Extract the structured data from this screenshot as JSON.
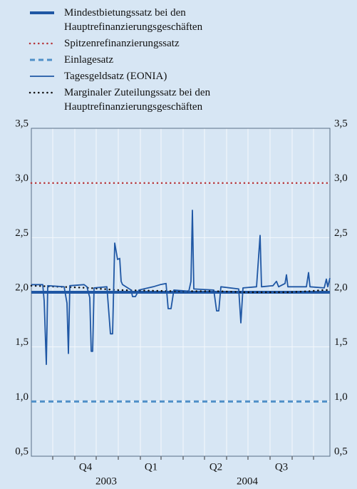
{
  "chart_data": {
    "type": "line",
    "series": [
      {
        "name": "Mindestbietungssatz bei den Hauptrefinanzierungsgeschäften",
        "color": "#1f57a4",
        "style": "solid",
        "width": 4,
        "x": [
          0,
          419
        ],
        "values": [
          2.0,
          2.0
        ]
      },
      {
        "name": "Spitzenrefinanzierungssatz",
        "color": "#b5353a",
        "style": "dotted",
        "width": 2.5,
        "x": [
          0,
          419
        ],
        "values": [
          3.0,
          3.0
        ]
      },
      {
        "name": "Einlagesatz",
        "color": "#4f8fc8",
        "style": "dashed",
        "width": 3,
        "x": [
          0,
          419
        ],
        "values": [
          1.0,
          1.0
        ]
      },
      {
        "name": "Tagesgeldsatz (EONIA)",
        "color": "#1f57a4",
        "style": "solid",
        "width": 1.8,
        "x": [
          0,
          16,
          18,
          21,
          23,
          46,
          50,
          52,
          54,
          74,
          78,
          82,
          84,
          86,
          88,
          106,
          111,
          114,
          117,
          121,
          124,
          126,
          128,
          140,
          142,
          146,
          151,
          171,
          181,
          189,
          192,
          196,
          200,
          221,
          224,
          226,
          228,
          256,
          260,
          263,
          266,
          291,
          294,
          297,
          316,
          321,
          323,
          339,
          344,
          347,
          356,
          358,
          360,
          386,
          389,
          391,
          411,
          414,
          416,
          419
        ],
        "values": [
          2.07,
          2.07,
          1.92,
          1.34,
          2.06,
          2.05,
          1.9,
          1.44,
          2.06,
          2.07,
          2.05,
          1.95,
          1.46,
          1.46,
          2.04,
          2.05,
          1.62,
          1.62,
          2.45,
          2.3,
          2.31,
          2.1,
          2.07,
          2.02,
          1.96,
          1.96,
          2.02,
          2.05,
          2.07,
          2.08,
          1.85,
          1.85,
          2.02,
          2.01,
          2.1,
          2.75,
          2.03,
          2.02,
          1.83,
          1.83,
          2.05,
          2.03,
          1.72,
          2.04,
          2.05,
          2.52,
          2.05,
          2.06,
          2.1,
          2.05,
          2.08,
          2.16,
          2.05,
          2.05,
          2.18,
          2.05,
          2.04,
          2.12,
          2.05,
          2.13
        ]
      },
      {
        "name": "Marginaler Zuteilungssatz bei den Hauptrefinanzierungsgeschäften",
        "color": "#111111",
        "style": "dotted",
        "width": 2.5,
        "x": [
          0,
          40,
          80,
          120,
          200,
          260,
          300,
          360,
          390,
          410,
          419
        ],
        "values": [
          2.06,
          2.05,
          2.04,
          2.02,
          2.01,
          2.01,
          2.0,
          2.0,
          2.01,
          2.02,
          2.02
        ]
      }
    ],
    "xlim": [
      0,
      419
    ],
    "xticks": [
      {
        "value": 76,
        "label": "Q4"
      },
      {
        "value": 168,
        "label": "Q1"
      },
      {
        "value": 259,
        "label": "Q2"
      },
      {
        "value": 351,
        "label": "Q3"
      }
    ],
    "x_group_labels": [
      {
        "value": 61,
        "label": "2003"
      },
      {
        "value": 259,
        "label": "2004"
      }
    ],
    "xgrid": [
      30,
      61,
      91,
      122,
      153,
      182,
      213,
      243,
      274,
      304,
      335,
      366,
      396
    ],
    "ylim": [
      0.5,
      3.5
    ],
    "yticks": [
      {
        "value": 0.5,
        "label": "0,5"
      },
      {
        "value": 1.0,
        "label": "1,0"
      },
      {
        "value": 1.5,
        "label": "1,5"
      },
      {
        "value": 2.0,
        "label": "2,0"
      },
      {
        "value": 2.5,
        "label": "2,5"
      },
      {
        "value": 3.0,
        "label": "3,0"
      },
      {
        "value": 3.5,
        "label": "3,5"
      }
    ],
    "y2lim": [
      0.5,
      3.5
    ],
    "y2ticks": [
      {
        "value": 0.5,
        "label": "0,5"
      },
      {
        "value": 1.0,
        "label": "1,0"
      },
      {
        "value": 1.5,
        "label": "1,5"
      },
      {
        "value": 2.0,
        "label": "2,0"
      },
      {
        "value": 2.5,
        "label": "2,5"
      },
      {
        "value": 3.0,
        "label": "3,0"
      },
      {
        "value": 3.5,
        "label": "3,5"
      }
    ],
    "grid": true
  }
}
